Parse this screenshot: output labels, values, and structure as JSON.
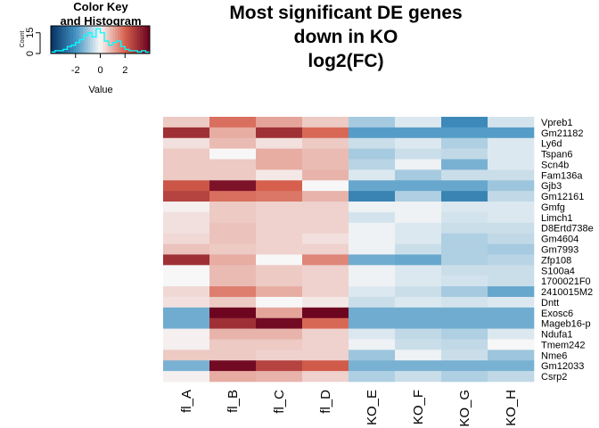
{
  "chart_data": {
    "type": "heatmap",
    "title_lines": [
      "Most significant DE genes",
      "down in KO",
      "log2(FC)"
    ],
    "color_key": {
      "title_lines": [
        "Color Key",
        "and Histogram"
      ],
      "xlabel": "Value",
      "ylabel": "Count",
      "x_ticks": [
        "-2",
        "0",
        "2"
      ],
      "x_tick_values": [
        -2,
        0,
        2
      ],
      "y_ticks": [
        "0",
        "15"
      ],
      "y_tick_values": [
        0,
        15
      ],
      "range": [
        -4,
        4
      ],
      "histogram_color": "#00ffff"
    },
    "palette": {
      "low": "#053061",
      "mid_low": "#4393c3",
      "mid": "#f7f7f7",
      "mid_high": "#d6604d",
      "high": "#67001f"
    },
    "columns": [
      "fl_A",
      "fl_B",
      "fl_C",
      "fl_D",
      "KO_E",
      "KO_F",
      "KO_G",
      "KO_H"
    ],
    "rows": [
      "Vpreb1",
      "Gm21182",
      "Ly6d",
      "Tspan6",
      "Scn4b",
      "Fam136a",
      "Gjb3",
      "Gm12161",
      "Gmfg",
      "Limch1",
      "D8Ertd738e",
      "Gm4604",
      "Gm7993",
      "Zfp108",
      "S100a4",
      "1700021F0",
      "2410015M2",
      "Dntt",
      "Exosc6",
      "Mageb16-p",
      "Ndufa1",
      "Tmem242",
      "Nme6",
      "Gm12033",
      "Csrp2"
    ],
    "values": [
      [
        0.6,
        1.8,
        1.1,
        0.6,
        -0.9,
        -0.3,
        -2.2,
        -0.4
      ],
      [
        3.0,
        1.0,
        3.0,
        1.9,
        -1.8,
        -1.8,
        -1.8,
        -1.8
      ],
      [
        0.3,
        0.8,
        0.3,
        0.6,
        -0.5,
        -0.3,
        -0.8,
        -0.3
      ],
      [
        0.6,
        0.0,
        1.0,
        0.8,
        -0.9,
        -0.5,
        -0.6,
        -0.3
      ],
      [
        0.6,
        0.6,
        1.0,
        0.8,
        -0.7,
        -0.1,
        -1.4,
        -0.3
      ],
      [
        0.6,
        0.6,
        0.2,
        0.9,
        -0.3,
        -0.9,
        -0.5,
        -0.5
      ],
      [
        2.2,
        3.6,
        2.0,
        0.0,
        -1.6,
        -1.6,
        -1.6,
        -1.0
      ],
      [
        2.6,
        1.8,
        1.7,
        0.9,
        -2.3,
        -0.8,
        -2.3,
        -0.6
      ],
      [
        0.1,
        0.6,
        0.5,
        0.5,
        -0.1,
        -0.1,
        -0.3,
        -0.3
      ],
      [
        0.3,
        0.6,
        0.5,
        0.5,
        -0.4,
        -0.1,
        -0.4,
        -0.3
      ],
      [
        0.3,
        0.7,
        0.5,
        0.5,
        -0.1,
        -0.3,
        -0.5,
        -0.5
      ],
      [
        0.4,
        0.7,
        0.5,
        0.3,
        -0.1,
        -0.3,
        -0.8,
        -0.6
      ],
      [
        0.7,
        0.6,
        0.5,
        0.5,
        -0.1,
        -0.5,
        -0.8,
        -0.9
      ],
      [
        3.0,
        1.0,
        0.0,
        1.5,
        -1.5,
        -1.6,
        -0.8,
        -0.7
      ],
      [
        0.0,
        0.8,
        0.6,
        0.5,
        -0.1,
        -0.3,
        -0.5,
        -0.5
      ],
      [
        0.0,
        0.8,
        0.6,
        0.5,
        -0.1,
        -0.3,
        -0.4,
        -0.5
      ],
      [
        0.4,
        1.6,
        1.0,
        0.5,
        -0.3,
        -0.5,
        -0.9,
        -1.6
      ],
      [
        0.3,
        0.6,
        0.0,
        0.2,
        -0.5,
        -0.3,
        -0.4,
        -0.3
      ],
      [
        -1.5,
        3.9,
        1.1,
        3.9,
        -1.5,
        -1.5,
        -1.5,
        -1.5
      ],
      [
        -1.5,
        3.0,
        3.8,
        1.9,
        -1.5,
        -1.5,
        -1.5,
        -1.5
      ],
      [
        0.1,
        0.9,
        0.9,
        0.5,
        -0.3,
        -0.6,
        -0.8,
        -0.3
      ],
      [
        0.1,
        0.6,
        0.6,
        0.5,
        -0.1,
        -0.5,
        -0.6,
        0.0
      ],
      [
        0.6,
        0.6,
        0.5,
        0.5,
        -1.0,
        -0.1,
        -0.5,
        -1.0
      ],
      [
        -1.4,
        3.8,
        2.6,
        2.1,
        -1.4,
        -1.4,
        -1.4,
        -1.4
      ],
      [
        0.1,
        1.0,
        0.9,
        0.5,
        -0.8,
        -0.5,
        -0.8,
        -0.6
      ]
    ],
    "histogram_counts": [
      1,
      2,
      2,
      3,
      5,
      6,
      8,
      10,
      13,
      15,
      12,
      18,
      15,
      9,
      6,
      8,
      9,
      5,
      3,
      2,
      2,
      1,
      2,
      1
    ]
  }
}
